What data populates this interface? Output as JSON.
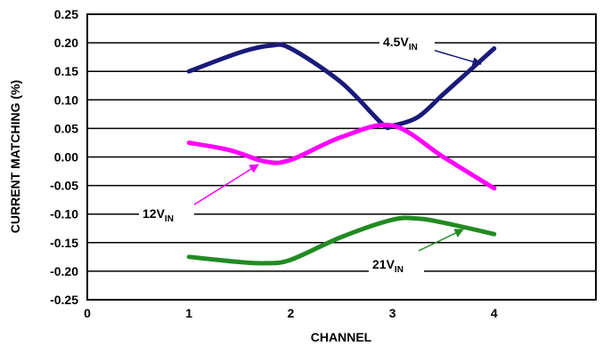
{
  "chart_data": {
    "type": "line",
    "title": "",
    "xlabel": "CHANNEL",
    "ylabel": "CURRENT MATCHING (%)",
    "xlim": [
      0,
      5
    ],
    "ylim": [
      -0.25,
      0.25
    ],
    "x_ticks": [
      "0",
      "1",
      "2",
      "3",
      "4"
    ],
    "y_ticks": [
      "0.25",
      "0.20",
      "0.15",
      "0.10",
      "0.05",
      "0.00",
      "-0.05",
      "-0.10",
      "-0.15",
      "-0.20",
      "-0.25"
    ],
    "grid": true,
    "series": [
      {
        "label_main": "4.5V",
        "label_sub": "IN",
        "color": "#1a1a7a",
        "x": [
          1,
          2,
          3,
          4
        ],
        "y": [
          0.15,
          0.19,
          0.055,
          0.19
        ],
        "curve_x": [
          1.0,
          1.5,
          1.8,
          2.0,
          2.5,
          2.9,
          3.0,
          3.25,
          3.5,
          3.75,
          4.0
        ],
        "curve_y": [
          0.15,
          0.183,
          0.195,
          0.19,
          0.13,
          0.058,
          0.055,
          0.07,
          0.11,
          0.15,
          0.19
        ]
      },
      {
        "label_main": "12V",
        "label_sub": "IN",
        "color": "#ff00ff",
        "x": [
          1,
          2,
          3,
          4
        ],
        "y": [
          0.025,
          -0.01,
          0.055,
          -0.055
        ],
        "curve_x": [
          1.0,
          1.4,
          1.75,
          2.0,
          2.5,
          3.0,
          3.5,
          4.0
        ],
        "curve_y": [
          0.025,
          0.012,
          -0.008,
          -0.005,
          0.035,
          0.055,
          0.0,
          -0.055
        ]
      },
      {
        "label_main": "21V",
        "label_sub": "IN",
        "color": "#228b22",
        "x": [
          1,
          2,
          3,
          4
        ],
        "y": [
          -0.175,
          -0.185,
          -0.11,
          -0.135
        ],
        "curve_x": [
          1.0,
          1.5,
          1.75,
          2.0,
          2.5,
          3.0,
          3.25,
          3.5,
          4.0
        ],
        "curve_y": [
          -0.175,
          -0.184,
          -0.186,
          -0.18,
          -0.14,
          -0.11,
          -0.108,
          -0.115,
          -0.135
        ]
      }
    ]
  }
}
